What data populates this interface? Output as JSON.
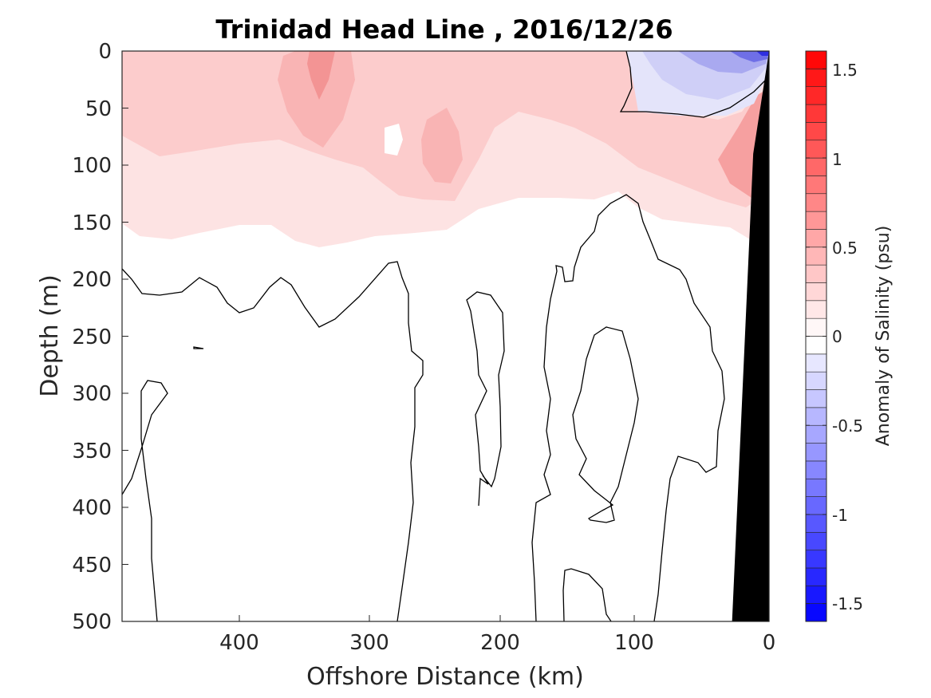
{
  "chart_data": {
    "type": "heatmap",
    "title": "Trinidad Head Line , 2016/12/26",
    "xlabel": "Offshore Distance (km)",
    "ylabel": "Depth (m)",
    "xlim": [
      490,
      0
    ],
    "ylim": [
      0,
      500
    ],
    "x_reversed": true,
    "y_reversed": true,
    "x_ticks": [
      400,
      300,
      200,
      100,
      0
    ],
    "y_ticks": [
      0,
      50,
      100,
      150,
      200,
      250,
      300,
      350,
      400,
      450,
      500
    ],
    "colorbar": {
      "label": "Anomaly of Salinity (psu)",
      "range": [
        -1.6,
        1.6
      ],
      "ticks": [
        1.5,
        1,
        0.5,
        0,
        -0.5,
        -1,
        -1.5
      ],
      "tick_labels": [
        "1.5",
        "1",
        "0.5",
        "0",
        "-0.5",
        "-1",
        "-1.5"
      ],
      "colormap": "blue-white-red diverging",
      "levels_step": 0.1
    },
    "anomaly_regions": [
      {
        "region": "upper layer, 490-0 km, 0-~170 m",
        "anomaly": 0.1
      },
      {
        "region": "near 340 km, 0-80 m",
        "anomaly": 0.3
      },
      {
        "region": "near 245 km, 60-130 m",
        "anomaly": 0.2
      },
      {
        "region": "nearshore 0-30 km, 0-50 m",
        "anomaly": -0.4
      },
      {
        "region": "nearshore 0-20 km, 60-170 m",
        "anomaly": 0.4
      }
    ],
    "bathymetry": {
      "color": "#000000",
      "points": [
        [
          0,
          0
        ],
        [
          12,
          90
        ],
        [
          28,
          500
        ]
      ]
    }
  },
  "colors": {
    "background": "#ffffff",
    "axis": "#262626",
    "positive_max": "#ff0000",
    "negative_max": "#0000ff",
    "bathymetry": "#000000"
  }
}
